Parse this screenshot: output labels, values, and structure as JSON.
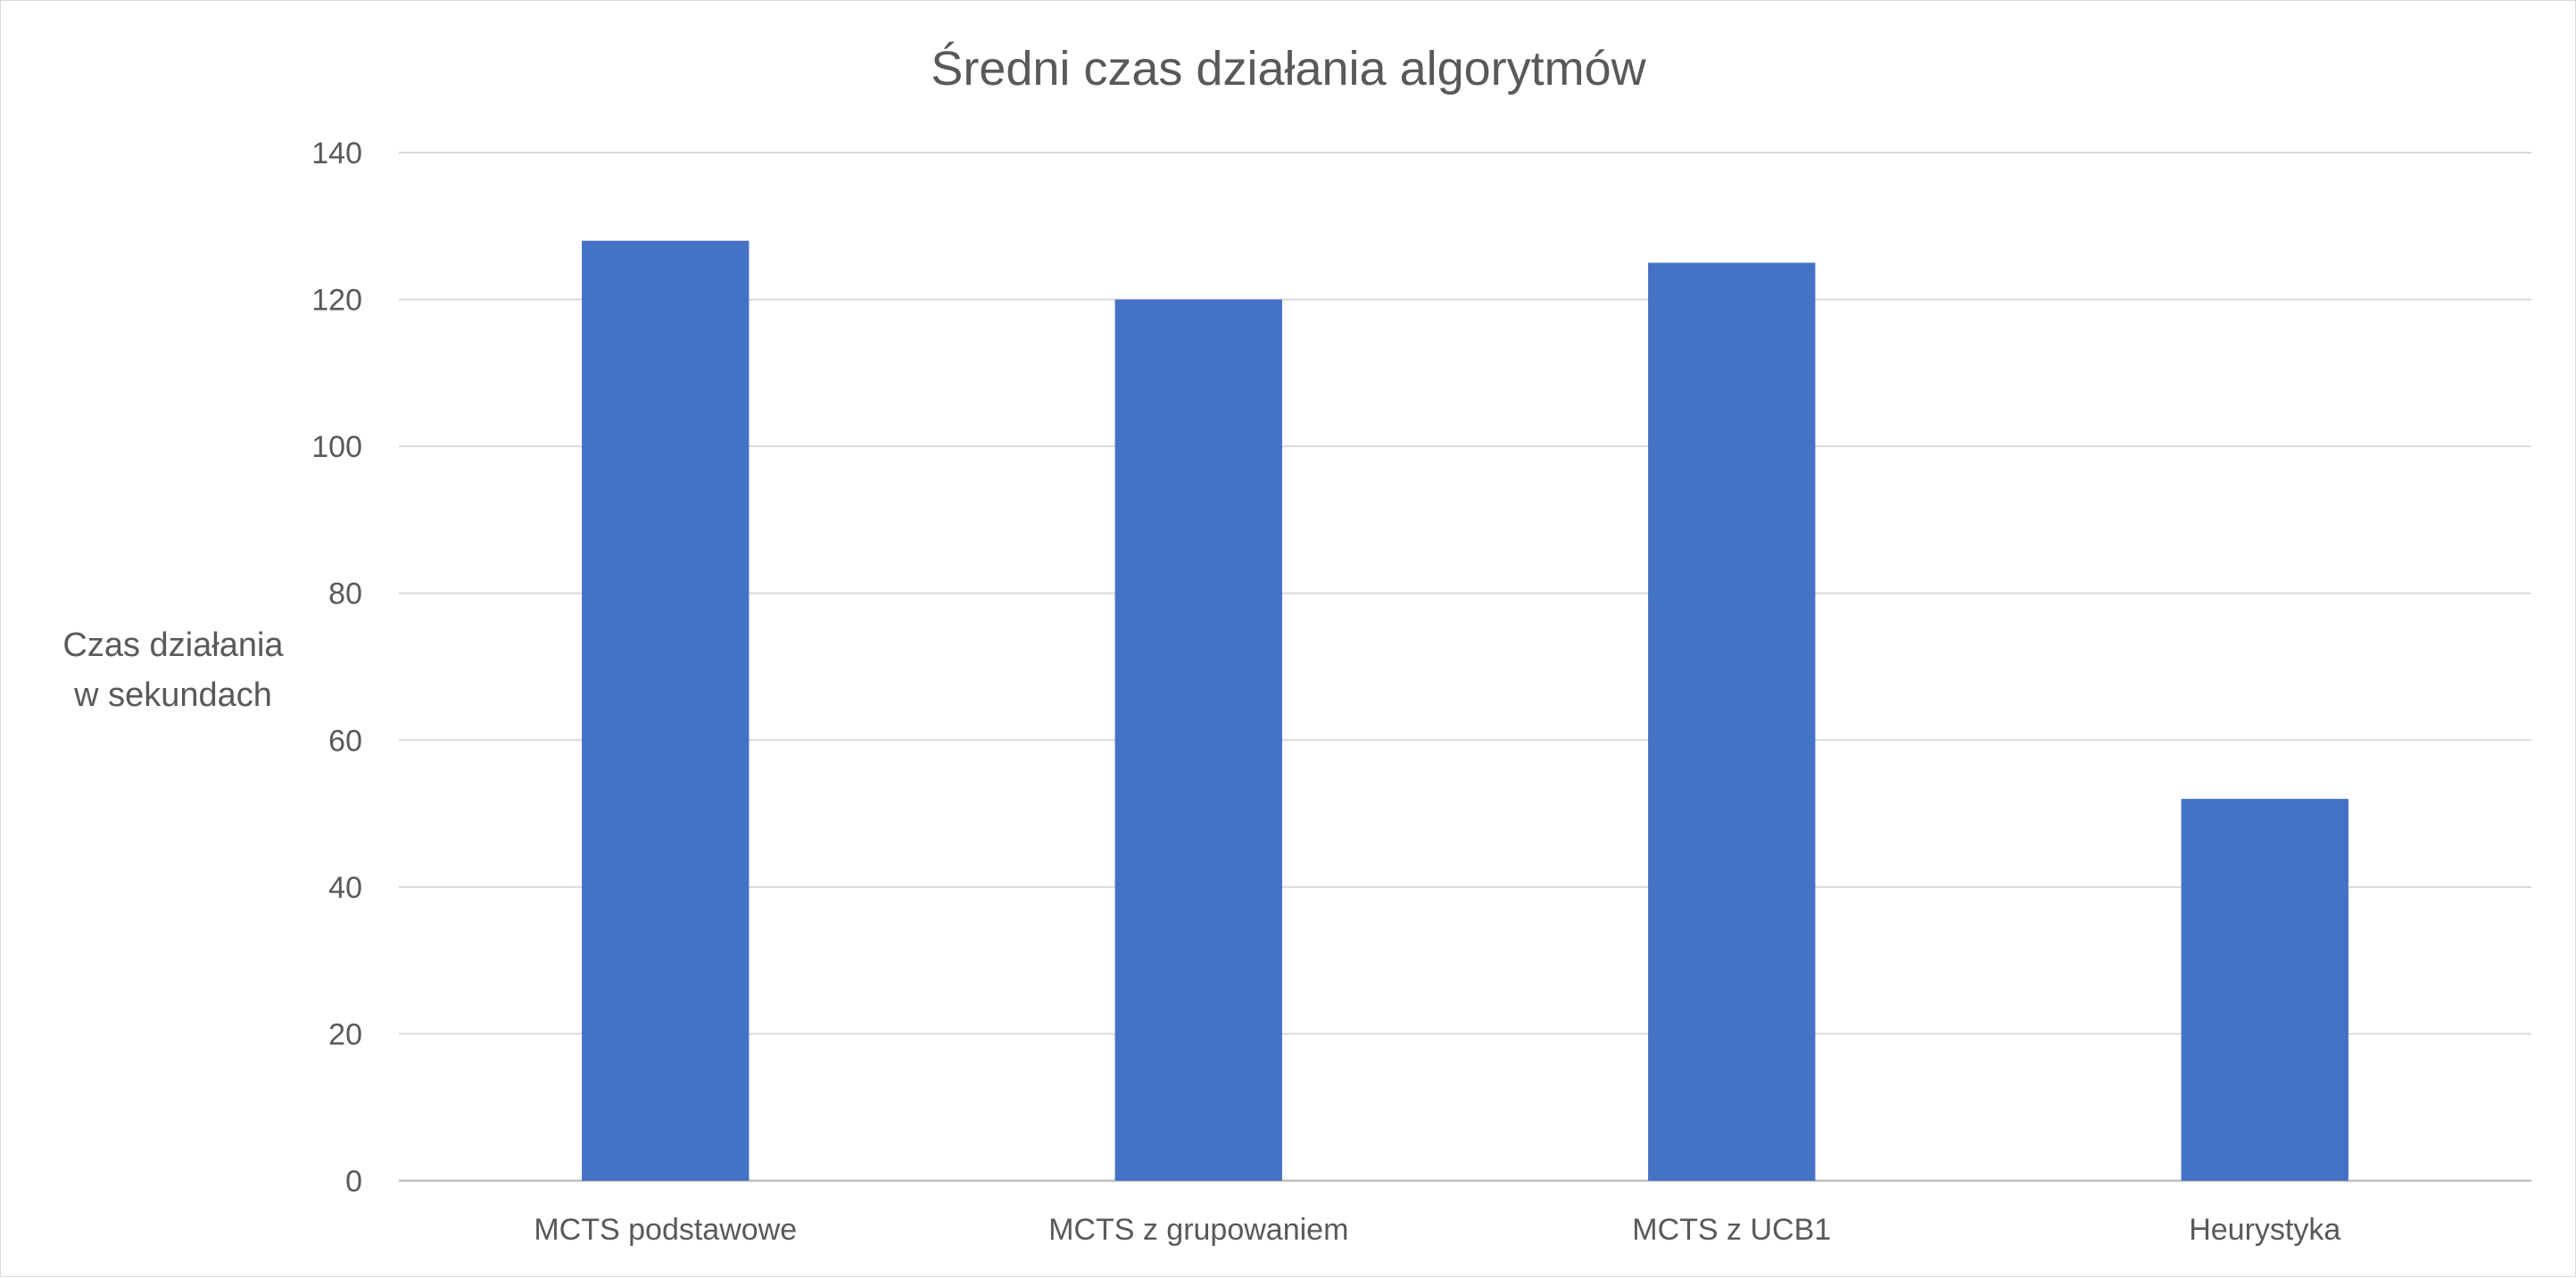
{
  "chart_data": {
    "type": "bar",
    "title": "Średni czas działania algorytmów",
    "ylabel_lines": [
      "Czas działania",
      "w sekundach"
    ],
    "xlabel": "",
    "categories": [
      "MCTS podstawowe",
      "MCTS z grupowaniem",
      "MCTS z UCB1",
      "Heurystyka"
    ],
    "values": [
      128,
      120,
      125,
      52
    ],
    "ylim": [
      0,
      140
    ],
    "yticks": [
      0,
      20,
      40,
      60,
      80,
      100,
      120,
      140
    ],
    "grid": true,
    "legend": "none",
    "bar_color": "#4472C4",
    "grid_color": "#d9d9d9"
  }
}
